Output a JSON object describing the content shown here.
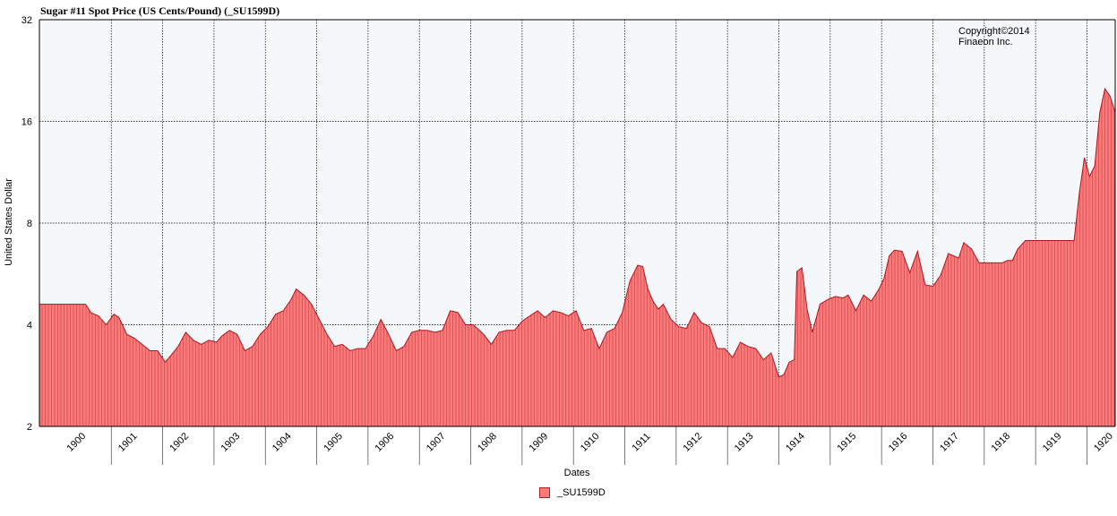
{
  "colors": {
    "fill": "#f87a7a",
    "stroke": "#b3151f",
    "plot_bg": "#f4f8fb",
    "grid": "#000000"
  },
  "chart_data": {
    "type": "area",
    "title": "Sugar #11 Spot Price (US Cents/Pound) (_SU1599D)",
    "xlabel": "Dates",
    "ylabel": "United States Dollar",
    "y_scale": "log2",
    "ylim": [
      2,
      32
    ],
    "yticks": [
      2,
      4,
      8,
      16,
      32
    ],
    "xlim": [
      1899.6,
      1920.55
    ],
    "xticks": [
      "1900",
      "1901",
      "1902",
      "1903",
      "1904",
      "1905",
      "1906",
      "1907",
      "1908",
      "1909",
      "1910",
      "1911",
      "1912",
      "1913",
      "1914",
      "1915",
      "1916",
      "1917",
      "1918",
      "1919",
      "1920"
    ],
    "grid": true,
    "legend_position": "bottom-center",
    "annotation": "Copyright©2014\nFinaeon Inc.",
    "series": [
      {
        "name": "_SU1599D",
        "x": [
          1899.6,
          1900.5,
          1900.6,
          1900.75,
          1900.9,
          1901.05,
          1901.15,
          1901.3,
          1901.45,
          1901.6,
          1901.75,
          1901.9,
          1902.05,
          1902.2,
          1902.3,
          1902.45,
          1902.6,
          1902.75,
          1902.9,
          1903.05,
          1903.15,
          1903.3,
          1903.45,
          1903.6,
          1903.75,
          1903.9,
          1904.05,
          1904.2,
          1904.35,
          1904.5,
          1904.6,
          1904.75,
          1904.9,
          1905.05,
          1905.2,
          1905.35,
          1905.5,
          1905.65,
          1905.8,
          1905.95,
          1906.1,
          1906.25,
          1906.4,
          1906.55,
          1906.7,
          1906.85,
          1907.0,
          1907.15,
          1907.3,
          1907.45,
          1907.6,
          1907.75,
          1907.9,
          1908.05,
          1908.25,
          1908.4,
          1908.55,
          1908.7,
          1908.85,
          1909.0,
          1909.15,
          1909.3,
          1909.45,
          1909.6,
          1909.75,
          1909.9,
          1910.05,
          1910.2,
          1910.35,
          1910.5,
          1910.65,
          1910.8,
          1910.95,
          1911.1,
          1911.25,
          1911.35,
          1911.45,
          1911.55,
          1911.65,
          1911.75,
          1911.9,
          1912.05,
          1912.2,
          1912.35,
          1912.5,
          1912.65,
          1912.8,
          1912.95,
          1913.1,
          1913.25,
          1913.4,
          1913.55,
          1913.7,
          1913.85,
          1914.0,
          1914.1,
          1914.2,
          1914.3,
          1914.35,
          1914.45,
          1914.55,
          1914.65,
          1914.8,
          1914.95,
          1915.1,
          1915.25,
          1915.35,
          1915.5,
          1915.65,
          1915.8,
          1915.95,
          1916.05,
          1916.15,
          1916.25,
          1916.4,
          1916.55,
          1916.7,
          1916.85,
          1917.0,
          1917.15,
          1917.3,
          1917.4,
          1917.5,
          1917.6,
          1917.75,
          1917.9,
          1918.05,
          1918.2,
          1918.35,
          1918.45,
          1918.55,
          1918.65,
          1918.8,
          1918.95,
          1919.1,
          1919.25,
          1919.4,
          1919.55,
          1919.65,
          1919.75,
          1919.85,
          1919.95,
          1920.05,
          1920.15,
          1920.25,
          1920.35,
          1920.45,
          1920.55
        ],
        "values": [
          4.6,
          4.6,
          4.35,
          4.25,
          4.0,
          4.3,
          4.2,
          3.75,
          3.65,
          3.5,
          3.35,
          3.35,
          3.1,
          3.3,
          3.45,
          3.8,
          3.6,
          3.5,
          3.6,
          3.55,
          3.7,
          3.85,
          3.75,
          3.35,
          3.45,
          3.75,
          3.95,
          4.3,
          4.4,
          4.75,
          5.1,
          4.9,
          4.6,
          4.15,
          3.75,
          3.45,
          3.5,
          3.35,
          3.4,
          3.4,
          3.7,
          4.15,
          3.75,
          3.35,
          3.45,
          3.8,
          3.85,
          3.85,
          3.8,
          3.85,
          4.4,
          4.35,
          4.0,
          4.0,
          3.75,
          3.5,
          3.8,
          3.85,
          3.85,
          4.1,
          4.25,
          4.4,
          4.2,
          4.4,
          4.35,
          4.25,
          4.4,
          3.85,
          3.9,
          3.4,
          3.8,
          3.9,
          4.35,
          5.4,
          6.0,
          5.95,
          5.1,
          4.7,
          4.45,
          4.6,
          4.15,
          3.95,
          3.9,
          4.35,
          4.05,
          3.95,
          3.4,
          3.4,
          3.2,
          3.55,
          3.45,
          3.4,
          3.15,
          3.3,
          2.8,
          2.85,
          3.1,
          3.15,
          5.75,
          5.9,
          4.45,
          3.8,
          4.6,
          4.75,
          4.85,
          4.8,
          4.9,
          4.4,
          4.9,
          4.7,
          5.1,
          5.5,
          6.4,
          6.65,
          6.6,
          5.7,
          6.6,
          5.25,
          5.2,
          5.6,
          6.5,
          6.4,
          6.3,
          7.0,
          6.7,
          6.1,
          6.1,
          6.1,
          6.1,
          6.2,
          6.2,
          6.7,
          7.1,
          7.1,
          7.1,
          7.1,
          7.1,
          7.1,
          7.1,
          7.1,
          9.8,
          12.5,
          11.0,
          11.8,
          17.0,
          20.0,
          19.0,
          17.0
        ]
      }
    ]
  }
}
